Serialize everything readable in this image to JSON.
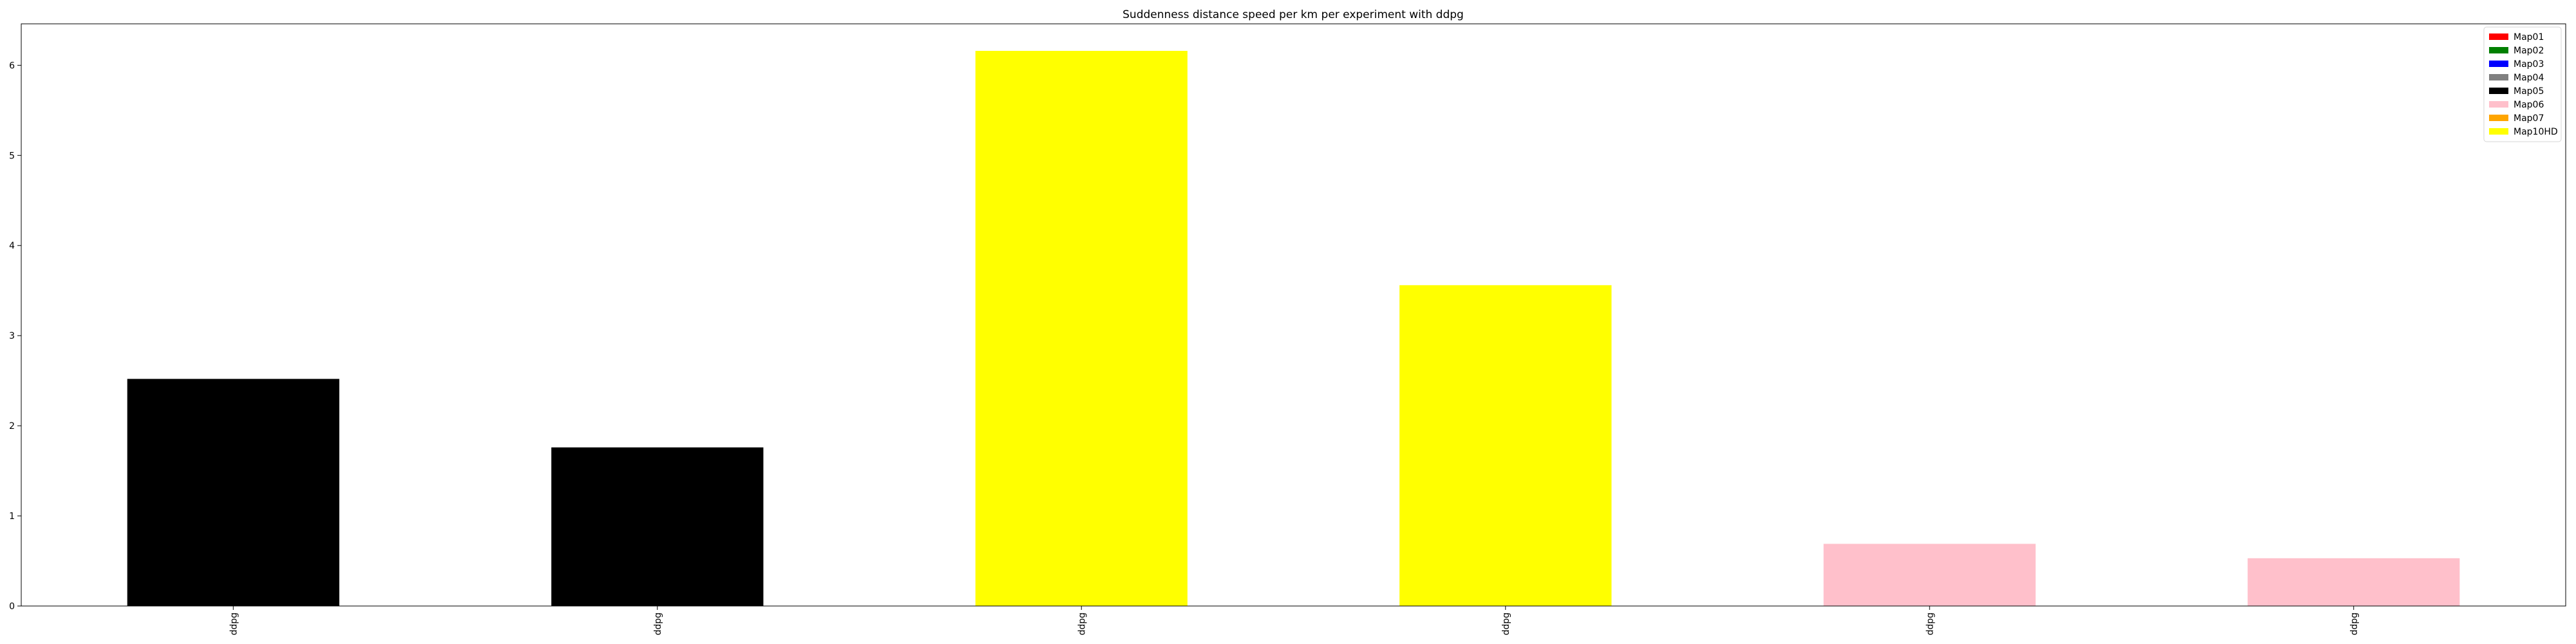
{
  "chart_data": {
    "type": "bar",
    "title": "Suddenness distance speed per km per experiment with ddpg",
    "xlabel": "",
    "ylabel": "",
    "categories": [
      "ddpg",
      "ddpg",
      "ddpg",
      "ddpg",
      "ddpg",
      "ddpg"
    ],
    "values": [
      2.52,
      1.76,
      6.16,
      3.56,
      0.69,
      0.53
    ],
    "bar_colors": [
      "#000000",
      "#000000",
      "#ffff00",
      "#ffff00",
      "#ffc0cb",
      "#ffc0cb"
    ],
    "ylim": [
      0,
      6.46
    ],
    "yticks": [
      0,
      1,
      2,
      3,
      4,
      5,
      6
    ],
    "legend_position": "top-right",
    "legend": [
      {
        "name": "Map01",
        "color": "#ff0000"
      },
      {
        "name": "Map02",
        "color": "#008000"
      },
      {
        "name": "Map03",
        "color": "#0000ff"
      },
      {
        "name": "Map04",
        "color": "#808080"
      },
      {
        "name": "Map05",
        "color": "#000000"
      },
      {
        "name": "Map06",
        "color": "#ffc0cb"
      },
      {
        "name": "Map07",
        "color": "#ffa500"
      },
      {
        "name": "Map10HD",
        "color": "#ffff00"
      }
    ]
  }
}
